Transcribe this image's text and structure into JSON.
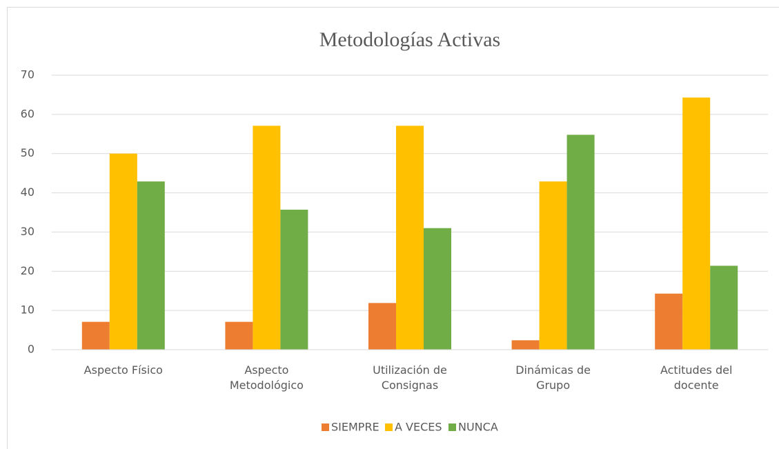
{
  "chart_data": {
    "type": "bar",
    "title": "Metodologías Activas",
    "categories": [
      "Aspecto Físico",
      "Aspecto Metodológico",
      "Utilización de Consignas",
      "Dinámicas de Grupo",
      "Actitudes del docente"
    ],
    "series": [
      {
        "name": "SIEMPRE",
        "color": "#ed7d31",
        "values": [
          7.1,
          7.1,
          11.9,
          2.4,
          14.3
        ]
      },
      {
        "name": "A VECES",
        "color": "#ffc000",
        "values": [
          50,
          57.1,
          57.1,
          42.9,
          64.3
        ]
      },
      {
        "name": "NUNCA",
        "color": "#70ad47",
        "values": [
          42.9,
          35.7,
          31,
          54.8,
          21.4
        ]
      }
    ],
    "ylim": [
      0,
      70
    ],
    "yticks": [
      0,
      10,
      20,
      30,
      40,
      50,
      60,
      70
    ],
    "grid": true,
    "legend": "bottom"
  }
}
